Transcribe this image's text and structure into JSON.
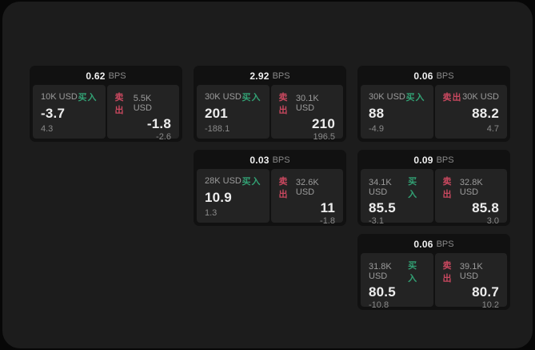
{
  "board": {
    "unit_label": "BPS",
    "buy_label": "买入",
    "sell_label": "卖出",
    "colors": {
      "background": "#070707",
      "panel": "#1c1c1c",
      "card": "#111111",
      "tile": "#232323",
      "buy_green": "#32a174",
      "sell_red": "#c9485f",
      "value_white": "#ededed",
      "muted_gray": "#9b9b9b"
    }
  },
  "cards": [
    {
      "col": 1,
      "row": 1,
      "bps_value": "0.62",
      "buy": {
        "amount": "10K USD",
        "price": "-3.7",
        "delta": "4.3"
      },
      "sell": {
        "amount": "5.5K USD",
        "price": "-1.8",
        "delta": "-2.6"
      }
    },
    {
      "col": 2,
      "row": 1,
      "bps_value": "2.92",
      "buy": {
        "amount": "30K USD",
        "price": "201",
        "delta": "-188.1"
      },
      "sell": {
        "amount": "30.1K USD",
        "price": "210",
        "delta": "196.5"
      }
    },
    {
      "col": 3,
      "row": 1,
      "bps_value": "0.06",
      "buy": {
        "amount": "30K USD",
        "price": "88",
        "delta": "-4.9"
      },
      "sell": {
        "amount": "30K USD",
        "price": "88.2",
        "delta": "4.7"
      }
    },
    {
      "col": 2,
      "row": 2,
      "bps_value": "0.03",
      "buy": {
        "amount": "28K USD",
        "price": "10.9",
        "delta": "1.3"
      },
      "sell": {
        "amount": "32.6K USD",
        "price": "11",
        "delta": "-1.8"
      }
    },
    {
      "col": 3,
      "row": 2,
      "bps_value": "0.09",
      "buy": {
        "amount": "34.1K USD",
        "price": "85.5",
        "delta": "-3.1"
      },
      "sell": {
        "amount": "32.8K USD",
        "price": "85.8",
        "delta": "3.0"
      }
    },
    {
      "col": 3,
      "row": 3,
      "bps_value": "0.06",
      "buy": {
        "amount": "31.8K USD",
        "price": "80.5",
        "delta": "-10.8"
      },
      "sell": {
        "amount": "39.1K USD",
        "price": "80.7",
        "delta": "10.2"
      }
    }
  ]
}
